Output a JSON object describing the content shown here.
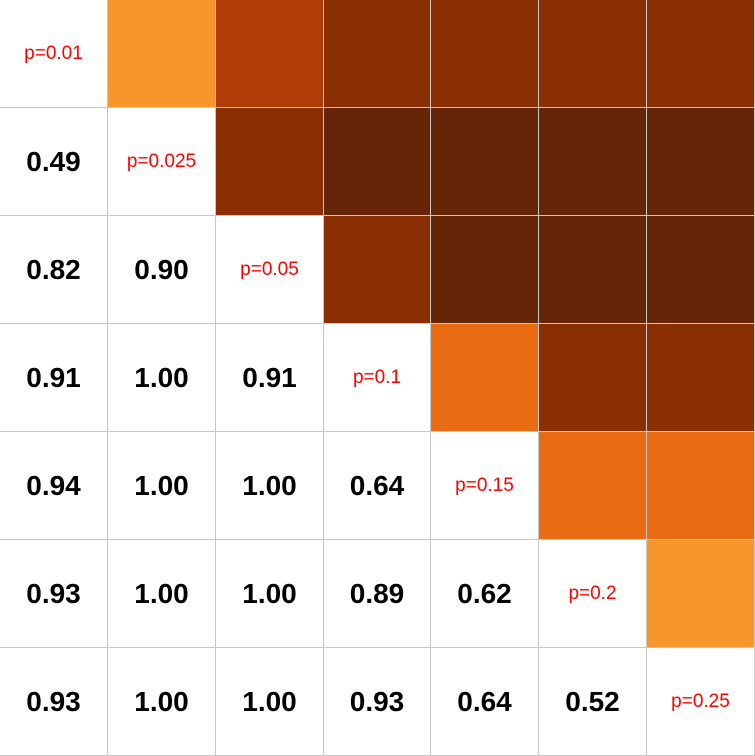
{
  "chart_data": {
    "type": "heatmap",
    "description_rows": 7,
    "row_labels": [],
    "diagonal_labels": [
      "p=0.01",
      "p=0.025",
      "p=0.05",
      "p=0.1",
      "p=0.15",
      "p=0.2",
      "p=0.25"
    ],
    "lower_values": [
      [
        null,
        null,
        null,
        null,
        null,
        null,
        null
      ],
      [
        "0.49",
        null,
        null,
        null,
        null,
        null,
        null
      ],
      [
        "0.82",
        "0.90",
        null,
        null,
        null,
        null,
        null
      ],
      [
        "0.91",
        "1.00",
        "0.91",
        null,
        null,
        null,
        null
      ],
      [
        "0.94",
        "1.00",
        "1.00",
        "0.64",
        null,
        null,
        null
      ],
      [
        "0.93",
        "1.00",
        "1.00",
        "0.89",
        "0.62",
        null,
        null
      ],
      [
        "0.93",
        "1.00",
        "1.00",
        "0.93",
        "0.64",
        "0.52",
        null
      ]
    ],
    "upper_colors": [
      [
        null,
        "#f7962a",
        "#b03d05",
        "#8a2e03",
        "#8a2e03",
        "#8a2e03",
        "#8a2e03"
      ],
      [
        null,
        null,
        "#8a2e03",
        "#652506",
        "#652506",
        "#652506",
        "#652506"
      ],
      [
        null,
        null,
        null,
        "#8a2e03",
        "#652506",
        "#652506",
        "#652506"
      ],
      [
        null,
        null,
        null,
        null,
        "#e96b12",
        "#8a2e03",
        "#8a2e03"
      ],
      [
        null,
        null,
        null,
        null,
        null,
        "#e96b12",
        "#e96b12"
      ],
      [
        null,
        null,
        null,
        null,
        null,
        null,
        "#f7962a"
      ],
      [
        null,
        null,
        null,
        null,
        null,
        null,
        null
      ]
    ],
    "colors": {
      "diagonal_text": "#ff0000",
      "value_text": "#000000",
      "grid": "#c8c8c8"
    }
  }
}
